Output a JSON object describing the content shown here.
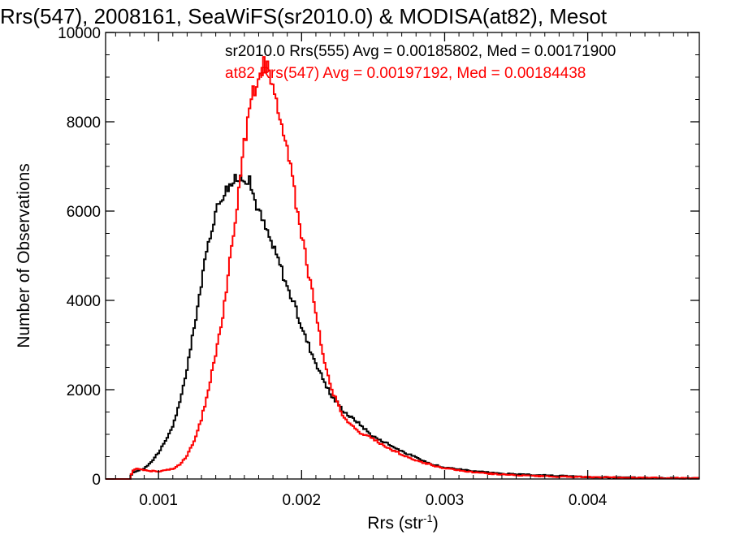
{
  "chart_data": {
    "type": "line",
    "style": "histogram-step",
    "title": "Rrs(547), 2008161, SeaWiFS(sr2010.0) & MODISA(at82), Mesot",
    "xlabel_main": "Rrs (str",
    "xlabel_sup": "-1",
    "xlabel_end": ")",
    "ylabel": "Number of Observations",
    "xlim": [
      0.00063,
      0.00478
    ],
    "ylim": [
      0,
      10000
    ],
    "grid": false,
    "legend_placement": "top-right",
    "x_ticks": [
      {
        "value": 0.001,
        "label": "0.001"
      },
      {
        "value": 0.002,
        "label": "0.002"
      },
      {
        "value": 0.003,
        "label": "0.003"
      },
      {
        "value": 0.004,
        "label": "0.004"
      }
    ],
    "y_ticks": [
      {
        "value": 0,
        "label": "0"
      },
      {
        "value": 2000,
        "label": "2000"
      },
      {
        "value": 4000,
        "label": "4000"
      },
      {
        "value": 6000,
        "label": "6000"
      },
      {
        "value": 8000,
        "label": "8000"
      },
      {
        "value": 10000,
        "label": "10000"
      }
    ],
    "series": [
      {
        "name": "sr2010.0 Rrs(555) Avg = 0.00185802, Med = 0.00171900",
        "color": "#000000",
        "x": [
          0.00063,
          0.0008,
          0.00082,
          0.00085,
          0.0009,
          0.00095,
          0.001,
          0.00105,
          0.0011,
          0.00115,
          0.0012,
          0.00125,
          0.0013,
          0.00135,
          0.0014,
          0.00145,
          0.0015,
          0.00155,
          0.0016,
          0.00163,
          0.00167,
          0.0017,
          0.00175,
          0.0018,
          0.00185,
          0.0019,
          0.00195,
          0.002,
          0.0021,
          0.0022,
          0.0023,
          0.0024,
          0.0025,
          0.0026,
          0.0027,
          0.0028,
          0.0029,
          0.003,
          0.0032,
          0.0034,
          0.0036,
          0.0038,
          0.004,
          0.0043,
          0.0046,
          0.00478
        ],
        "y": [
          0,
          0,
          150,
          180,
          240,
          380,
          600,
          850,
          1200,
          1700,
          2500,
          3400,
          4400,
          5300,
          6000,
          6400,
          6600,
          6700,
          6800,
          6700,
          6300,
          6000,
          5600,
          5200,
          4800,
          4300,
          3900,
          3400,
          2600,
          1900,
          1500,
          1250,
          950,
          800,
          620,
          480,
          340,
          260,
          180,
          120,
          90,
          70,
          45,
          30,
          20,
          15
        ]
      },
      {
        "name": "at82 Rrs(547) Avg = 0.00197192, Med = 0.00184438",
        "color": "#ff0000",
        "x": [
          0.00063,
          0.0008,
          0.00082,
          0.00085,
          0.0009,
          0.00095,
          0.001,
          0.00105,
          0.0011,
          0.00115,
          0.0012,
          0.00125,
          0.0013,
          0.00135,
          0.0014,
          0.00145,
          0.0015,
          0.00155,
          0.0016,
          0.00165,
          0.0017,
          0.00175,
          0.00178,
          0.0018,
          0.00185,
          0.0019,
          0.00195,
          0.002,
          0.00205,
          0.0021,
          0.00215,
          0.0022,
          0.0023,
          0.0024,
          0.0025,
          0.0026,
          0.0027,
          0.0028,
          0.0029,
          0.003,
          0.0032,
          0.0034,
          0.0036,
          0.0038,
          0.004,
          0.0043,
          0.0046,
          0.00478
        ],
        "y": [
          0,
          0,
          200,
          230,
          210,
          180,
          170,
          200,
          230,
          330,
          520,
          850,
          1350,
          2000,
          2800,
          3700,
          4900,
          6200,
          7500,
          8500,
          9100,
          9300,
          9000,
          8700,
          8200,
          7400,
          6400,
          5500,
          4600,
          3700,
          2800,
          2100,
          1350,
          1050,
          900,
          700,
          550,
          420,
          320,
          240,
          150,
          100,
          70,
          50,
          40,
          30,
          20,
          15
        ]
      }
    ]
  }
}
